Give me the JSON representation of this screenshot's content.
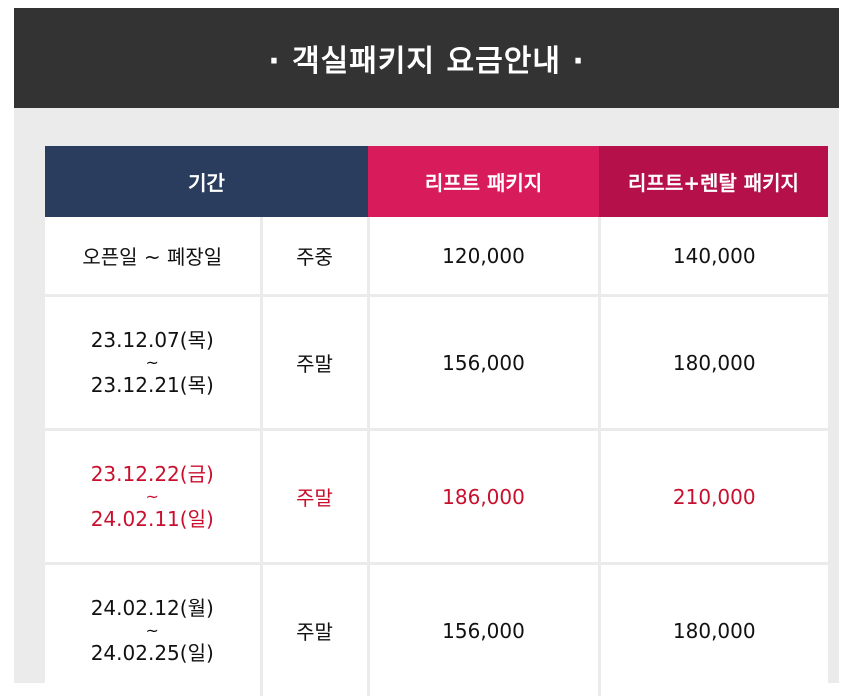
{
  "header": {
    "title": "· 객실패키지 요금안내 ·"
  },
  "table": {
    "columns": {
      "period": "기간",
      "lift": "리프트 패키지",
      "lift_rental": "리프트+렌탈 패키지"
    },
    "rows": [
      {
        "period": "오픈일 ~ 폐장일",
        "daytype": "주중",
        "lift": "120,000",
        "lift_rental": "140,000"
      },
      {
        "start": "23.12.07(목)",
        "sep": "~",
        "end": "23.12.21(목)",
        "daytype": "주말",
        "lift": "156,000",
        "lift_rental": "180,000"
      },
      {
        "start": "23.12.22(금)",
        "sep": "~",
        "end": "24.02.11(일)",
        "daytype": "주말",
        "lift": "186,000",
        "lift_rental": "210,000"
      },
      {
        "start": "24.02.12(월)",
        "sep": "~",
        "end": "24.02.25(일)",
        "daytype": "주말",
        "lift": "156,000",
        "lift_rental": "180,000"
      }
    ]
  },
  "colors": {
    "header_bg": "#333333",
    "period_header_bg": "#2b3d5e",
    "lift_header_bg": "#d81b5a",
    "lift_rental_header_bg": "#b5104a",
    "highlight_text": "#c8102e"
  }
}
